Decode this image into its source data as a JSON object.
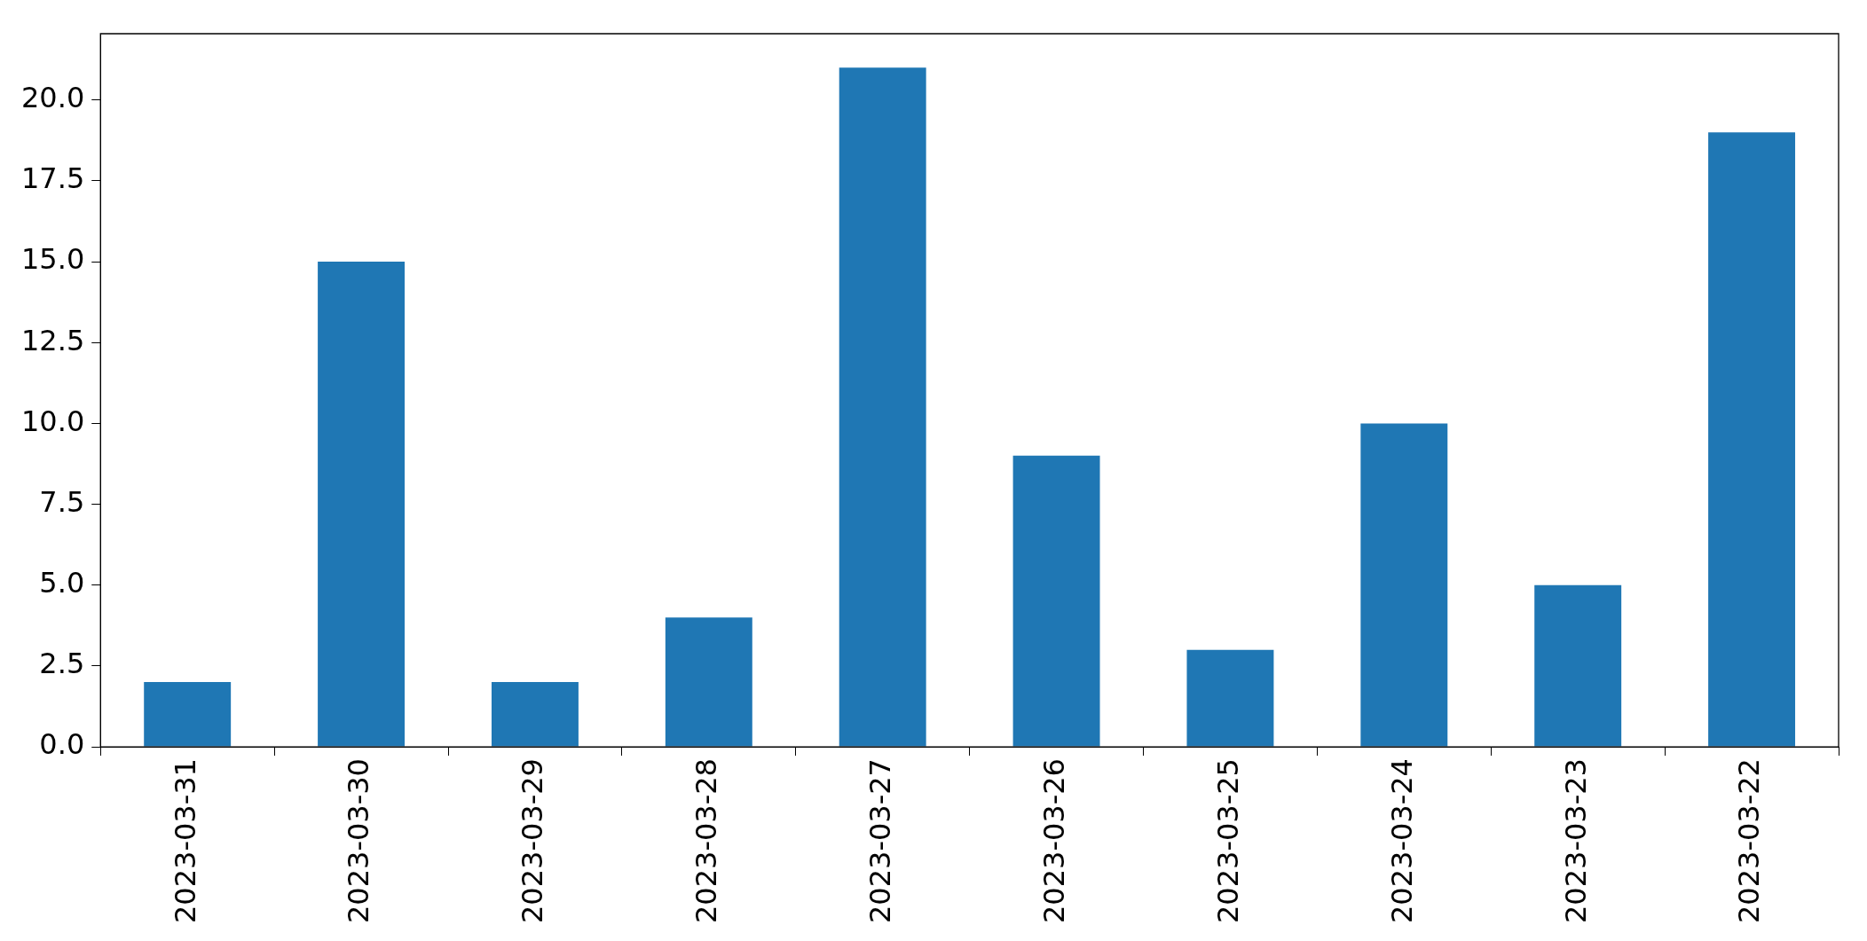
{
  "chart_data": {
    "type": "bar",
    "categories": [
      "2023-03-31",
      "2023-03-30",
      "2023-03-29",
      "2023-03-28",
      "2023-03-27",
      "2023-03-26",
      "2023-03-25",
      "2023-03-24",
      "2023-03-23",
      "2023-03-22"
    ],
    "values": [
      2,
      15,
      2,
      4,
      21,
      9,
      3,
      10,
      5,
      19
    ],
    "color": "#1f77b4",
    "ylim": [
      0,
      22.05
    ],
    "yticks": [
      {
        "value": 0,
        "label": "0.0"
      },
      {
        "value": 2.5,
        "label": "2.5"
      },
      {
        "value": 5,
        "label": "5.0"
      },
      {
        "value": 7.5,
        "label": "7.5"
      },
      {
        "value": 10,
        "label": "10.0"
      },
      {
        "value": 12.5,
        "label": "12.5"
      },
      {
        "value": 15,
        "label": "15.0"
      },
      {
        "value": 17.5,
        "label": "17.5"
      },
      {
        "value": 20,
        "label": "20.0"
      }
    ],
    "grid": false,
    "legend": false
  }
}
